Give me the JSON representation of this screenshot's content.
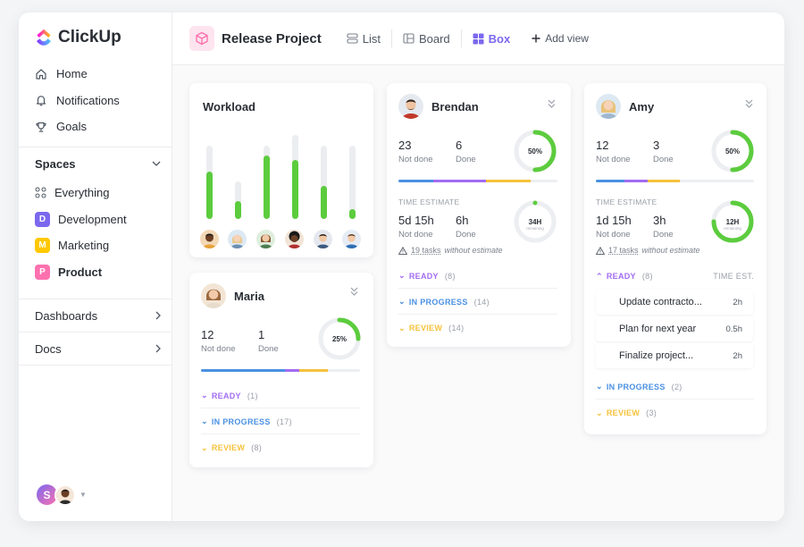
{
  "app": {
    "name": "ClickUp"
  },
  "sidebar": {
    "nav": [
      {
        "label": "Home",
        "icon": "home-icon"
      },
      {
        "label": "Notifications",
        "icon": "bell-icon"
      },
      {
        "label": "Goals",
        "icon": "trophy-icon"
      }
    ],
    "spaces_label": "Spaces",
    "spaces": [
      {
        "label": "Everything",
        "letter": "",
        "color": ""
      },
      {
        "label": "Development",
        "letter": "D",
        "color": "#7b68ee"
      },
      {
        "label": "Marketing",
        "letter": "M",
        "color": "#ffc800"
      },
      {
        "label": "Product",
        "letter": "P",
        "color": "#fd71af"
      }
    ],
    "dashboards_label": "Dashboards",
    "docs_label": "Docs",
    "user_initial": "S"
  },
  "topbar": {
    "project": "Release Project",
    "views": [
      {
        "label": "List",
        "icon": "list-icon"
      },
      {
        "label": "Board",
        "icon": "board-icon"
      },
      {
        "label": "Box",
        "icon": "box-grid-icon",
        "active": true
      }
    ],
    "add_view": "Add view"
  },
  "workload": {
    "title": "Workload",
    "levels": [
      0.65,
      0.47,
      0.87,
      0.7,
      0.45,
      0.13
    ]
  },
  "cards": {
    "maria": {
      "name": "Maria",
      "not_done": "12",
      "not_done_label": "Not done",
      "done": "1",
      "done_label": "Done",
      "ring_pct": "25%",
      "ring_value": 0.25,
      "statuses": [
        {
          "label": "READY",
          "count": "(1)",
          "color": "#a26cf3"
        },
        {
          "label": "IN PROGRESS",
          "count": "(17)",
          "color": "#4a90e2"
        },
        {
          "label": "REVIEW",
          "count": "(8)",
          "color": "#f6c23d"
        }
      ]
    },
    "brendan": {
      "name": "Brendan",
      "not_done": "23",
      "not_done_label": "Not done",
      "done": "6",
      "done_label": "Done",
      "ring_pct": "50%",
      "ring_value": 0.5,
      "time_estimate_label": "TIME ESTIMATE",
      "te_not_done": "5d 15h",
      "te_not_done_label": "Not done",
      "te_done": "6h",
      "te_done_label": "Done",
      "te_ring": "34H",
      "te_ring_sub": "remaining",
      "te_ring_value": 0.0,
      "warn_count": "19 tasks",
      "warn_text": "without estimate",
      "statuses": [
        {
          "label": "READY",
          "count": "(8)",
          "color": "#a26cf3"
        },
        {
          "label": "IN PROGRESS",
          "count": "(14)",
          "color": "#4a90e2"
        },
        {
          "label": "REVIEW",
          "count": "(14)",
          "color": "#f6c23d"
        }
      ]
    },
    "amy": {
      "name": "Amy",
      "not_done": "12",
      "not_done_label": "Not done",
      "done": "3",
      "done_label": "Done",
      "ring_pct": "50%",
      "ring_value": 0.5,
      "time_estimate_label": "TIME ESTIMATE",
      "te_not_done": "1d 15h",
      "te_not_done_label": "Not done",
      "te_done": "3h",
      "te_done_label": "Done",
      "te_ring": "12H",
      "te_ring_sub": "remaining",
      "te_ring_value": 0.75,
      "warn_count": "17 tasks",
      "warn_text": "without estimate",
      "ready_label": "READY",
      "ready_count": "(8)",
      "time_est_col": "TIME EST.",
      "tasks": [
        {
          "title": "Update contracto...",
          "est": "2h"
        },
        {
          "title": "Plan for next year",
          "est": "0.5h"
        },
        {
          "title": "Finalize project...",
          "est": "2h"
        }
      ],
      "statuses": [
        {
          "label": "IN PROGRESS",
          "count": "(2)",
          "color": "#4a90e2"
        },
        {
          "label": "REVIEW",
          "count": "(3)",
          "color": "#f6c23d"
        }
      ]
    }
  },
  "colors": {
    "accent": "#7b68ee",
    "green": "#5ccc3e",
    "purple": "#a26cf3",
    "blue": "#4a90e2",
    "yellow": "#f6c23d"
  }
}
